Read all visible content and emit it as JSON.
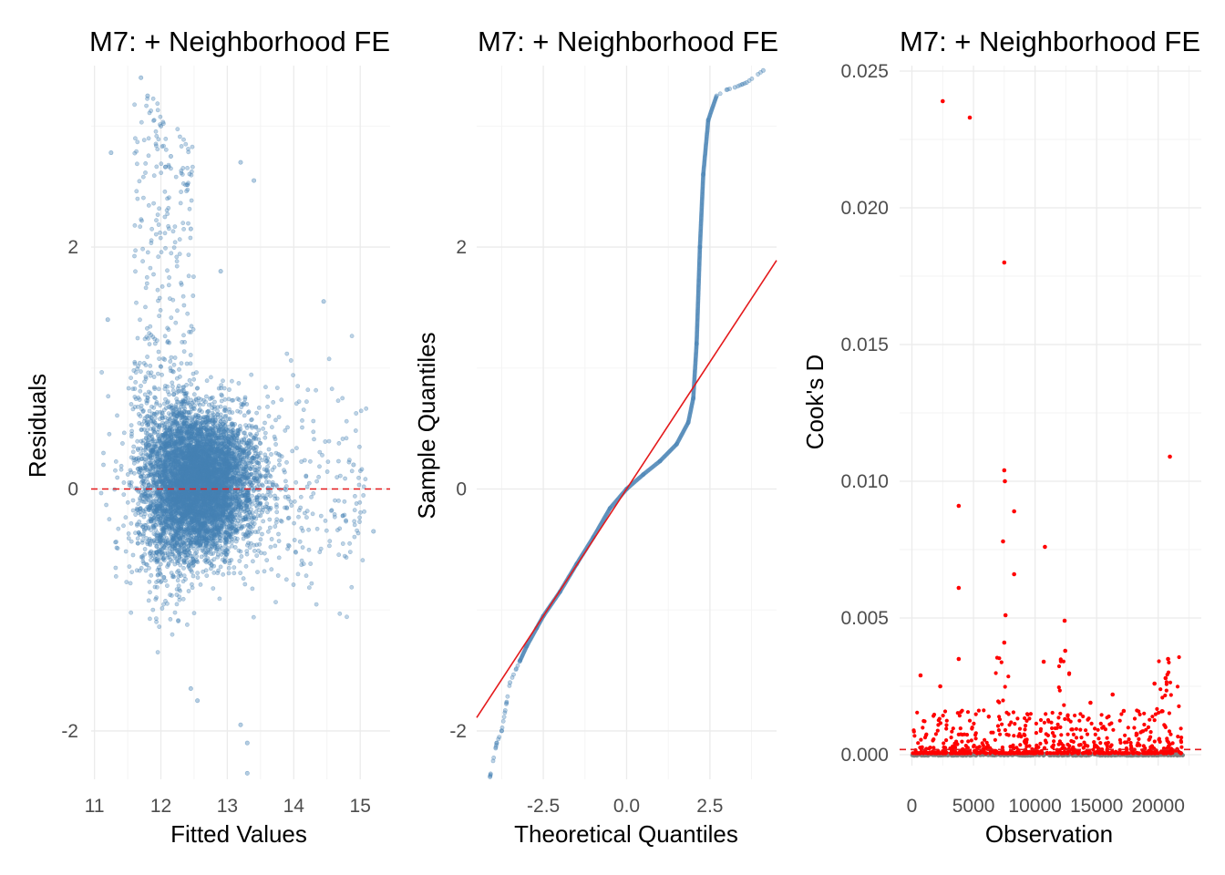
{
  "chart_data": [
    {
      "type": "scatter",
      "title": "M7: + Neighborhood FE",
      "xlabel": "Fitted Values",
      "ylabel": "Residuals",
      "xlim": [
        10.95,
        15.45
      ],
      "ylim": [
        -2.4,
        3.5
      ],
      "xticks": [
        11,
        12,
        13,
        14,
        15
      ],
      "xtick_labels": [
        "11",
        "12",
        "13",
        "14",
        "15"
      ],
      "yticks": [
        -2,
        0,
        2
      ],
      "ytick_labels": [
        "-2",
        "0",
        "2"
      ],
      "grid": true,
      "point_color": "#4682B4",
      "reference_line": {
        "y": 0,
        "color": "#E41A1C",
        "style": "dashed"
      },
      "description_points": [
        {
          "x": 11.7,
          "y": 3.4
        },
        {
          "x": 11.8,
          "y": 3.25
        },
        {
          "x": 12.0,
          "y": 3.0
        },
        {
          "x": 12.15,
          "y": 2.75
        },
        {
          "x": 11.25,
          "y": 2.78
        },
        {
          "x": 13.2,
          "y": 2.7
        },
        {
          "x": 13.4,
          "y": 2.55
        },
        {
          "x": 12.45,
          "y": 2.15
        },
        {
          "x": 12.9,
          "y": 1.8
        },
        {
          "x": 14.45,
          "y": 1.55
        },
        {
          "x": 11.2,
          "y": 1.4
        },
        {
          "x": 14.9,
          "y": 0.2
        },
        {
          "x": 15.2,
          "y": -0.35
        },
        {
          "x": 13.2,
          "y": -1.95
        },
        {
          "x": 13.3,
          "y": -2.1
        },
        {
          "x": 13.3,
          "y": -2.35
        },
        {
          "x": 12.55,
          "y": -1.75
        },
        {
          "x": 12.45,
          "y": -1.65
        }
      ]
    },
    {
      "type": "line",
      "title": "M7: + Neighborhood FE",
      "xlabel": "Theoretical Quantiles",
      "ylabel": "Sample Quantiles",
      "xlim": [
        -4.5,
        4.5
      ],
      "ylim": [
        -2.4,
        3.5
      ],
      "xticks": [
        -2.5,
        0.0,
        2.5
      ],
      "xtick_labels": [
        "-2.5",
        "0.0",
        "2.5"
      ],
      "yticks": [
        -2,
        0,
        2
      ],
      "ytick_labels": [
        "-2",
        "0",
        "2"
      ],
      "grid": true,
      "point_color": "#4682B4",
      "qq_points": [
        {
          "x": -4.1,
          "y": -2.38
        },
        {
          "x": -3.9,
          "y": -2.1
        },
        {
          "x": -3.75,
          "y": -2.0
        },
        {
          "x": -3.5,
          "y": -1.6
        },
        {
          "x": -3.2,
          "y": -1.42
        },
        {
          "x": -3.0,
          "y": -1.3
        },
        {
          "x": -2.7,
          "y": -1.15
        },
        {
          "x": -2.5,
          "y": -1.05
        },
        {
          "x": -2.0,
          "y": -0.85
        },
        {
          "x": -1.5,
          "y": -0.62
        },
        {
          "x": -1.0,
          "y": -0.4
        },
        {
          "x": -0.5,
          "y": -0.16
        },
        {
          "x": 0.0,
          "y": 0.0
        },
        {
          "x": 0.5,
          "y": 0.12
        },
        {
          "x": 1.0,
          "y": 0.23
        },
        {
          "x": 1.5,
          "y": 0.37
        },
        {
          "x": 1.85,
          "y": 0.55
        },
        {
          "x": 2.0,
          "y": 0.75
        },
        {
          "x": 2.1,
          "y": 1.2
        },
        {
          "x": 2.2,
          "y": 2.0
        },
        {
          "x": 2.3,
          "y": 2.6
        },
        {
          "x": 2.45,
          "y": 3.05
        },
        {
          "x": 2.7,
          "y": 3.25
        },
        {
          "x": 3.0,
          "y": 3.3
        },
        {
          "x": 3.25,
          "y": 3.32
        },
        {
          "x": 3.6,
          "y": 3.36
        },
        {
          "x": 4.1,
          "y": 3.46
        }
      ],
      "reference_line": {
        "intercept": 0.0,
        "slope": 0.42,
        "color": "#E41A1C"
      }
    },
    {
      "type": "scatter",
      "title": "M7: + Neighborhood FE",
      "xlabel": "Observation",
      "ylabel": "Cook's D",
      "xlim": [
        -1000,
        23500
      ],
      "ylim": [
        -0.0004,
        0.0252
      ],
      "xticks": [
        0,
        5000,
        10000,
        15000,
        20000
      ],
      "xtick_labels": [
        "0",
        "5000",
        "10000",
        "15000",
        "20000"
      ],
      "yticks": [
        0.0,
        0.005,
        0.01,
        0.015,
        0.02,
        0.025
      ],
      "ytick_labels": [
        "0.000",
        "0.005",
        "0.010",
        "0.015",
        "0.020",
        "0.025"
      ],
      "grid": true,
      "point_color": "#FF0000",
      "baseline_color": "#808080",
      "threshold_line": {
        "y": 0.00019,
        "color": "#E41A1C",
        "style": "dashed"
      },
      "highlighted_points": [
        {
          "x": 2500,
          "y": 0.0239
        },
        {
          "x": 4700,
          "y": 0.0233
        },
        {
          "x": 7500,
          "y": 0.018
        },
        {
          "x": 20950,
          "y": 0.0109
        },
        {
          "x": 7500,
          "y": 0.0104
        },
        {
          "x": 7550,
          "y": 0.01
        },
        {
          "x": 3800,
          "y": 0.0091
        },
        {
          "x": 8300,
          "y": 0.0089
        },
        {
          "x": 7400,
          "y": 0.0078
        },
        {
          "x": 10800,
          "y": 0.0076
        },
        {
          "x": 8300,
          "y": 0.0066
        },
        {
          "x": 3800,
          "y": 0.0061
        },
        {
          "x": 7600,
          "y": 0.0051
        },
        {
          "x": 12400,
          "y": 0.0049
        },
        {
          "x": 7500,
          "y": 0.0041
        },
        {
          "x": 12450,
          "y": 0.0038
        },
        {
          "x": 3800,
          "y": 0.0035
        },
        {
          "x": 20800,
          "y": 0.0035
        },
        {
          "x": 10700,
          "y": 0.0034
        },
        {
          "x": 20600,
          "y": 0.0028
        },
        {
          "x": 700,
          "y": 0.0029
        },
        {
          "x": 2300,
          "y": 0.0025
        },
        {
          "x": 19700,
          "y": 0.0026
        },
        {
          "x": 16300,
          "y": 0.0022
        },
        {
          "x": 14500,
          "y": 0.0019
        },
        {
          "x": 17200,
          "y": 0.0016
        }
      ]
    }
  ]
}
